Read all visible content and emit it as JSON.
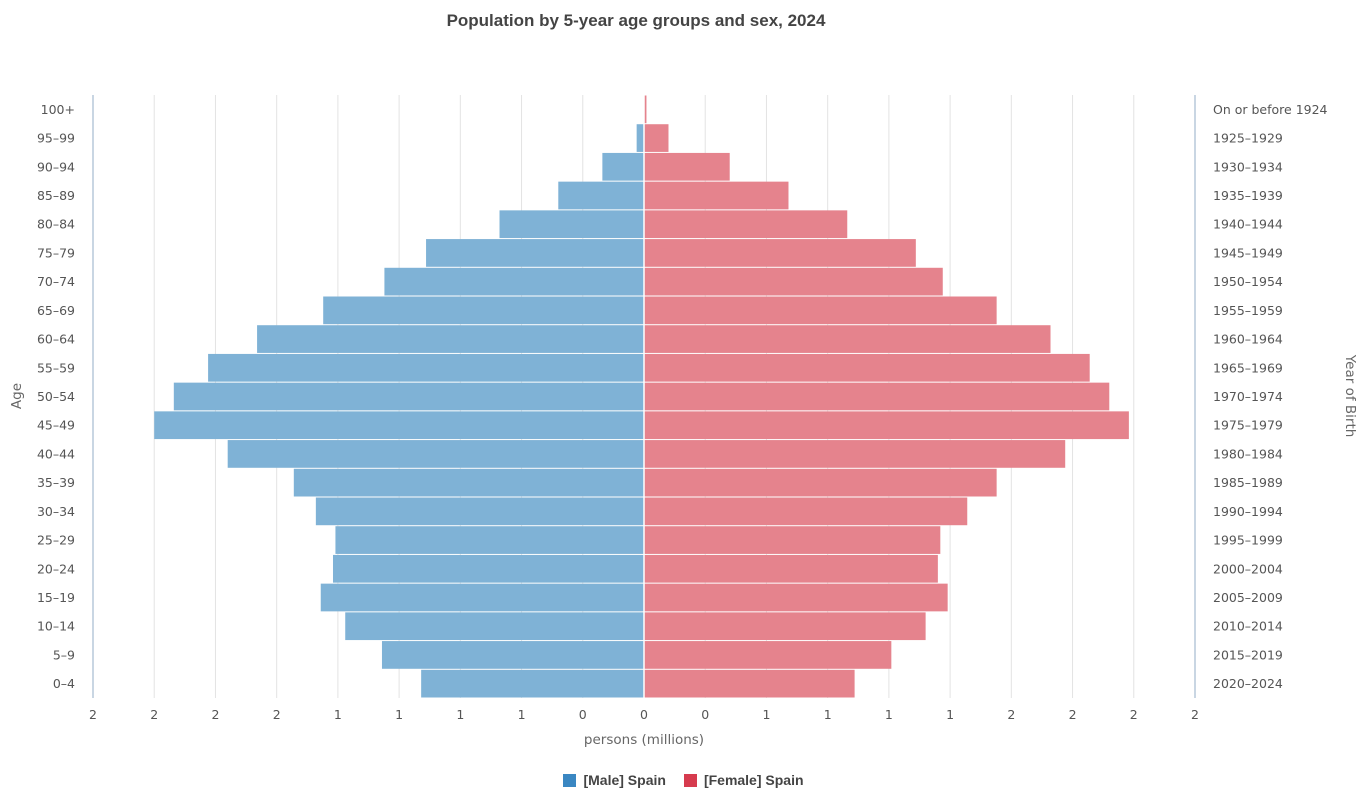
{
  "chart_data": {
    "type": "bar",
    "orientation": "population-pyramid",
    "title": "Population by 5-year age groups and sex, 2024",
    "xlabel": "persons (millions)",
    "ylabel": "Age",
    "ylabel_right": "Year of Birth",
    "x_tick_labels": [
      "2",
      "2",
      "2",
      "2",
      "1",
      "1",
      "1",
      "1",
      "0",
      "0",
      "0",
      "1",
      "1",
      "1",
      "1",
      "2",
      "2",
      "2",
      "2"
    ],
    "xlim": [
      -2.25,
      2.25
    ],
    "grid": true,
    "legend_position": "bottom-center",
    "categories": [
      "0–4",
      "5–9",
      "10–14",
      "15–19",
      "20–24",
      "25–29",
      "30–34",
      "35–39",
      "40–44",
      "45–49",
      "50–54",
      "55–59",
      "60–64",
      "65–69",
      "70–74",
      "75–79",
      "80–84",
      "85–89",
      "90–94",
      "95–99",
      "100+"
    ],
    "year_of_birth": [
      "2020–2024",
      "2015–2019",
      "2010–2014",
      "2005–2009",
      "2000–2004",
      "1995–1999",
      "1990–1994",
      "1985–1989",
      "1980–1984",
      "1975–1979",
      "1970–1974",
      "1965–1969",
      "1960–1964",
      "1955–1959",
      "1950–1954",
      "1945–1949",
      "1940–1944",
      "1935–1939",
      "1930–1934",
      "1925–1929",
      "On or before 1924"
    ],
    "series": [
      {
        "name": "[Male] Spain",
        "color": "#7fb2d6",
        "values": [
          0.91,
          1.07,
          1.22,
          1.32,
          1.27,
          1.26,
          1.34,
          1.43,
          1.7,
          2.0,
          1.92,
          1.78,
          1.58,
          1.31,
          1.06,
          0.89,
          0.59,
          0.35,
          0.17,
          0.03,
          0.0
        ]
      },
      {
        "name": "[Female] Spain",
        "color": "#e5838d",
        "values": [
          0.86,
          1.01,
          1.15,
          1.24,
          1.2,
          1.21,
          1.32,
          1.44,
          1.72,
          1.98,
          1.9,
          1.82,
          1.66,
          1.44,
          1.22,
          1.11,
          0.83,
          0.59,
          0.35,
          0.1,
          0.01
        ]
      }
    ],
    "legend_colors": {
      "male": "#3a87c2",
      "female": "#d63b4e"
    }
  }
}
